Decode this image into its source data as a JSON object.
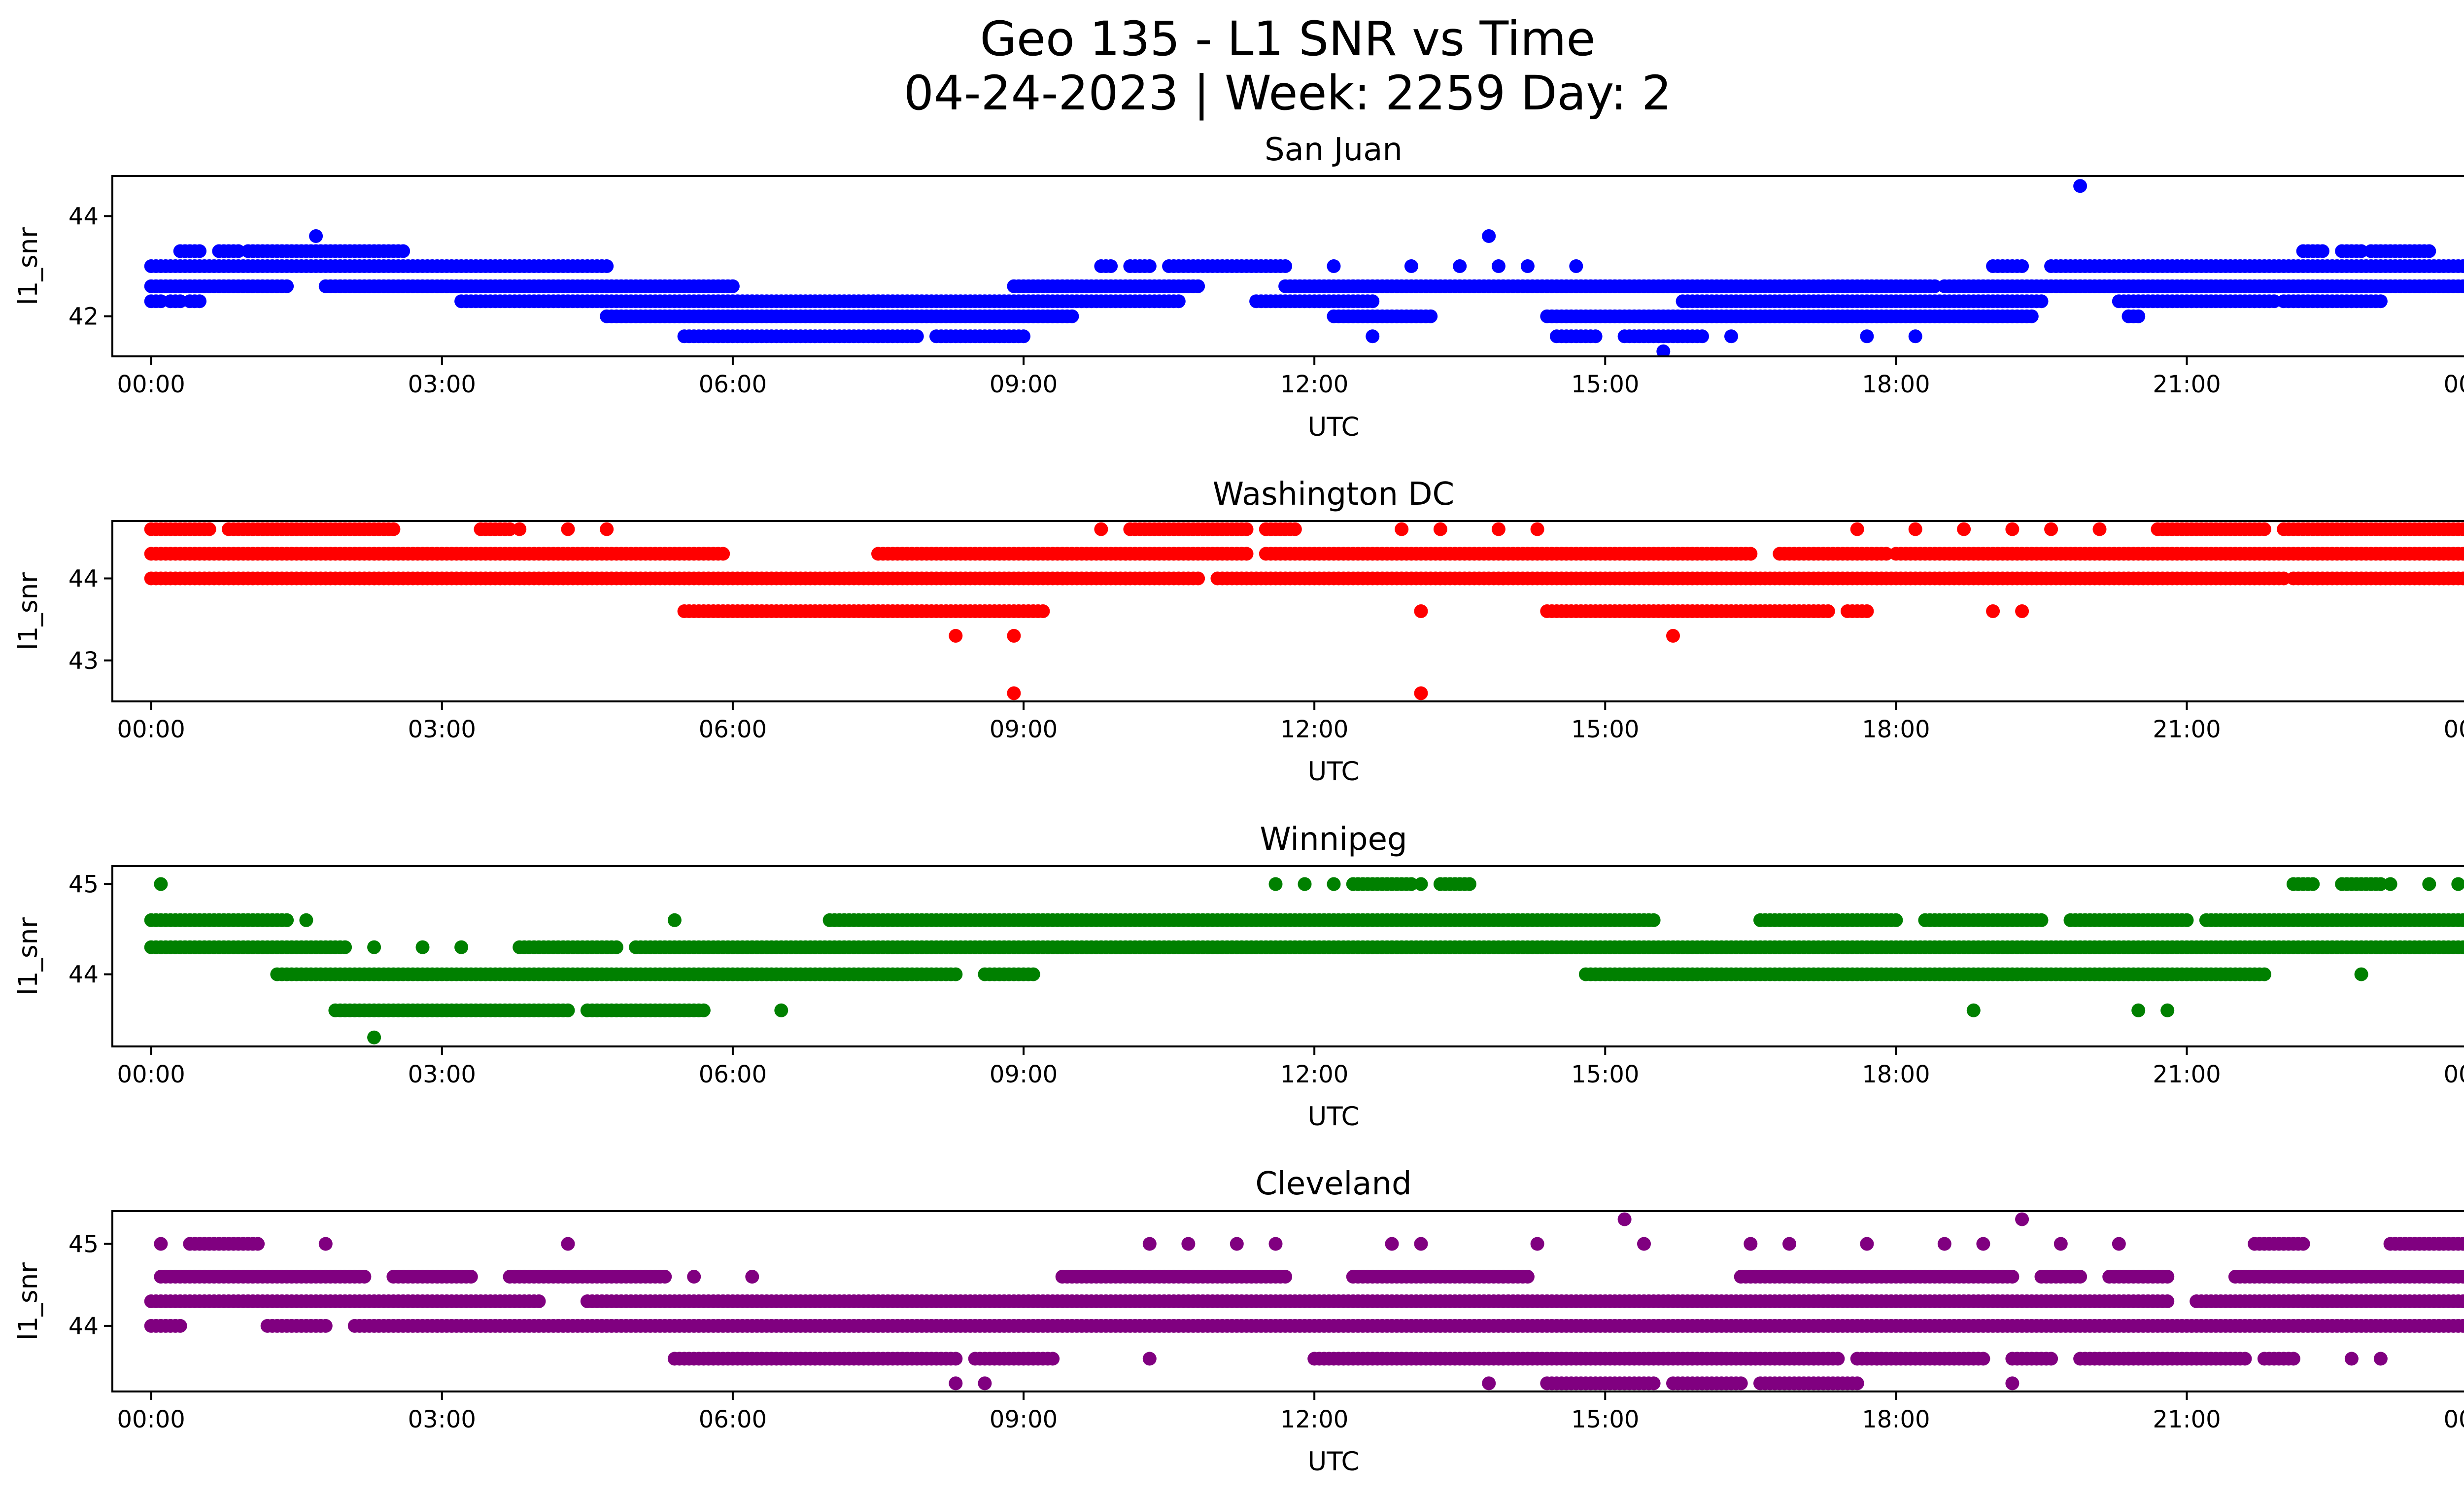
{
  "figure": {
    "title_line1": "Geo 135 - L1 SNR vs Time",
    "title_line2": "04-24-2023 | Week: 2259 Day: 2"
  },
  "chart_data": [
    {
      "type": "scatter",
      "title": "San Juan",
      "xlabel": "UTC",
      "ylabel": "l1_snr",
      "color": "#0000ff",
      "xlim": [
        -0.4,
        24.8
      ],
      "ylim": [
        41.2,
        44.8
      ],
      "xticks": [
        0,
        3,
        6,
        9,
        12,
        15,
        18,
        21,
        24
      ],
      "xtick_labels": [
        "00:00",
        "03:00",
        "06:00",
        "09:00",
        "12:00",
        "15:00",
        "18:00",
        "21:00",
        "00:00"
      ],
      "yticks": [
        42,
        44
      ],
      "ytick_labels": [
        "42",
        "44"
      ],
      "bands": [
        {
          "y": 43.3,
          "ranges": [
            [
              0.3,
              0.5
            ],
            [
              0.7,
              0.9
            ],
            [
              1.0,
              2.6
            ],
            [
              22.2,
              22.4
            ],
            [
              22.6,
              22.8
            ],
            [
              22.9,
              23.5
            ]
          ]
        },
        {
          "y": 43.0,
          "ranges": [
            [
              0.0,
              4.7
            ],
            [
              9.8,
              9.9
            ],
            [
              10.1,
              10.3
            ],
            [
              10.5,
              11.7
            ],
            [
              19.0,
              19.3
            ],
            [
              19.6,
              24.0
            ]
          ]
        },
        {
          "y": 42.6,
          "ranges": [
            [
              0.0,
              1.4
            ],
            [
              1.8,
              6.0
            ],
            [
              8.9,
              10.8
            ],
            [
              11.7,
              18.4
            ],
            [
              18.5,
              24.0
            ]
          ]
        },
        {
          "y": 42.3,
          "ranges": [
            [
              0.0,
              0.1
            ],
            [
              0.2,
              0.3
            ],
            [
              0.4,
              0.5
            ],
            [
              3.2,
              10.6
            ],
            [
              11.4,
              12.6
            ],
            [
              15.8,
              19.5
            ],
            [
              20.3,
              21.9
            ],
            [
              22.0,
              23.0
            ]
          ]
        },
        {
          "y": 42.0,
          "ranges": [
            [
              4.7,
              9.5
            ],
            [
              12.2,
              13.2
            ],
            [
              14.4,
              19.4
            ],
            [
              20.4,
              20.5
            ]
          ]
        },
        {
          "y": 41.6,
          "ranges": [
            [
              5.5,
              7.9
            ],
            [
              8.1,
              9.0
            ],
            [
              14.5,
              14.9
            ],
            [
              15.2,
              16.0
            ]
          ]
        }
      ],
      "points": [
        [
          1.7,
          43.6
        ],
        [
          13.8,
          43.6
        ],
        [
          19.9,
          44.6
        ],
        [
          12.6,
          41.6
        ],
        [
          16.3,
          41.6
        ],
        [
          17.7,
          41.6
        ],
        [
          18.2,
          41.6
        ],
        [
          15.6,
          41.3
        ],
        [
          13.0,
          43.0
        ],
        [
          13.5,
          43.0
        ],
        [
          13.9,
          43.0
        ],
        [
          14.2,
          43.0
        ],
        [
          14.7,
          43.0
        ],
        [
          12.2,
          43.0
        ]
      ]
    },
    {
      "type": "scatter",
      "title": "Washington DC",
      "xlabel": "UTC",
      "ylabel": "l1_snr",
      "color": "#ff0000",
      "xlim": [
        -0.4,
        24.8
      ],
      "ylim": [
        42.5,
        44.7
      ],
      "xticks": [
        0,
        3,
        6,
        9,
        12,
        15,
        18,
        21,
        24
      ],
      "xtick_labels": [
        "00:00",
        "03:00",
        "06:00",
        "09:00",
        "12:00",
        "15:00",
        "18:00",
        "21:00",
        "00:00"
      ],
      "yticks": [
        43,
        44
      ],
      "ytick_labels": [
        "43",
        "44"
      ],
      "bands": [
        {
          "y": 44.6,
          "ranges": [
            [
              0.0,
              0.6
            ],
            [
              0.8,
              2.5
            ],
            [
              3.4,
              3.7
            ],
            [
              10.1,
              11.3
            ],
            [
              11.5,
              11.8
            ],
            [
              20.7,
              21.8
            ],
            [
              22.0,
              24.0
            ]
          ]
        },
        {
          "y": 44.3,
          "ranges": [
            [
              0.0,
              5.9
            ],
            [
              7.5,
              11.3
            ],
            [
              11.5,
              16.5
            ],
            [
              16.8,
              17.9
            ],
            [
              18.0,
              24.0
            ]
          ]
        },
        {
          "y": 44.0,
          "ranges": [
            [
              0.0,
              10.8
            ],
            [
              11.0,
              22.0
            ],
            [
              22.1,
              24.0
            ]
          ]
        },
        {
          "y": 43.6,
          "ranges": [
            [
              5.5,
              9.2
            ],
            [
              14.4,
              17.3
            ],
            [
              17.5,
              17.7
            ]
          ]
        }
      ],
      "points": [
        [
          3.8,
          44.6
        ],
        [
          4.3,
          44.6
        ],
        [
          4.7,
          44.6
        ],
        [
          9.8,
          44.6
        ],
        [
          12.9,
          44.6
        ],
        [
          13.3,
          44.6
        ],
        [
          13.9,
          44.6
        ],
        [
          14.3,
          44.6
        ],
        [
          17.6,
          44.6
        ],
        [
          18.2,
          44.6
        ],
        [
          18.7,
          44.6
        ],
        [
          19.2,
          44.6
        ],
        [
          19.6,
          44.6
        ],
        [
          20.1,
          44.6
        ],
        [
          13.1,
          43.6
        ],
        [
          19.0,
          43.6
        ],
        [
          19.3,
          43.6
        ],
        [
          8.3,
          43.3
        ],
        [
          8.9,
          43.3
        ],
        [
          15.7,
          43.3
        ],
        [
          8.9,
          42.6
        ],
        [
          13.1,
          42.6
        ]
      ]
    },
    {
      "type": "scatter",
      "title": "Winnipeg",
      "xlabel": "UTC",
      "ylabel": "l1_snr",
      "color": "#008000",
      "xlim": [
        -0.4,
        24.8
      ],
      "ylim": [
        43.2,
        45.2
      ],
      "xticks": [
        0,
        3,
        6,
        9,
        12,
        15,
        18,
        21,
        24
      ],
      "xtick_labels": [
        "00:00",
        "03:00",
        "06:00",
        "09:00",
        "12:00",
        "15:00",
        "18:00",
        "21:00",
        "00:00"
      ],
      "yticks": [
        44,
        45
      ],
      "ytick_labels": [
        "44",
        "45"
      ],
      "bands": [
        {
          "y": 45.0,
          "ranges": [
            [
              12.4,
              13.0
            ],
            [
              13.3,
              13.6
            ],
            [
              22.1,
              22.3
            ],
            [
              22.6,
              23.0
            ]
          ]
        },
        {
          "y": 44.6,
          "ranges": [
            [
              0.0,
              1.4
            ],
            [
              7.0,
              15.5
            ],
            [
              16.6,
              18.0
            ],
            [
              18.3,
              19.5
            ],
            [
              19.8,
              21.0
            ],
            [
              21.2,
              24.0
            ]
          ]
        },
        {
          "y": 44.3,
          "ranges": [
            [
              0.0,
              2.0
            ],
            [
              3.8,
              4.8
            ],
            [
              5.0,
              24.0
            ]
          ]
        },
        {
          "y": 44.0,
          "ranges": [
            [
              1.3,
              8.3
            ],
            [
              8.6,
              9.1
            ],
            [
              14.8,
              21.8
            ]
          ]
        },
        {
          "y": 43.6,
          "ranges": [
            [
              1.9,
              4.3
            ],
            [
              4.5,
              5.7
            ]
          ]
        }
      ],
      "points": [
        [
          0.1,
          45.0
        ],
        [
          11.6,
          45.0
        ],
        [
          11.9,
          45.0
        ],
        [
          12.2,
          45.0
        ],
        [
          13.1,
          45.0
        ],
        [
          23.1,
          45.0
        ],
        [
          23.5,
          45.0
        ],
        [
          23.8,
          45.0
        ],
        [
          1.6,
          44.6
        ],
        [
          5.4,
          44.6
        ],
        [
          2.3,
          44.3
        ],
        [
          2.8,
          44.3
        ],
        [
          3.2,
          44.3
        ],
        [
          22.8,
          44.0
        ],
        [
          6.5,
          43.6
        ],
        [
          18.8,
          43.6
        ],
        [
          20.5,
          43.6
        ],
        [
          20.8,
          43.6
        ],
        [
          2.3,
          43.3
        ]
      ]
    },
    {
      "type": "scatter",
      "title": "Cleveland",
      "xlabel": "UTC",
      "ylabel": "l1_snr",
      "color": "#800080",
      "xlim": [
        -0.4,
        24.8
      ],
      "ylim": [
        43.2,
        45.4
      ],
      "xticks": [
        0,
        3,
        6,
        9,
        12,
        15,
        18,
        21,
        24
      ],
      "xtick_labels": [
        "00:00",
        "03:00",
        "06:00",
        "09:00",
        "12:00",
        "15:00",
        "18:00",
        "21:00",
        "00:00"
      ],
      "yticks": [
        44,
        45
      ],
      "ytick_labels": [
        "44",
        "45"
      ],
      "bands": [
        {
          "y": 45.0,
          "ranges": [
            [
              0.4,
              1.1
            ],
            [
              21.7,
              22.2
            ],
            [
              23.1,
              24.0
            ]
          ]
        },
        {
          "y": 44.6,
          "ranges": [
            [
              0.1,
              2.2
            ],
            [
              2.5,
              3.3
            ],
            [
              3.7,
              5.3
            ],
            [
              9.4,
              11.7
            ],
            [
              12.4,
              14.2
            ],
            [
              16.4,
              19.2
            ],
            [
              19.5,
              19.9
            ],
            [
              20.2,
              20.8
            ],
            [
              21.5,
              24.0
            ]
          ]
        },
        {
          "y": 44.3,
          "ranges": [
            [
              0.0,
              4.0
            ],
            [
              4.5,
              20.8
            ],
            [
              21.1,
              24.0
            ]
          ]
        },
        {
          "y": 44.0,
          "ranges": [
            [
              0.0,
              0.3
            ],
            [
              1.2,
              1.8
            ],
            [
              2.1,
              24.0
            ]
          ]
        },
        {
          "y": 43.6,
          "ranges": [
            [
              5.4,
              8.3
            ],
            [
              8.5,
              9.3
            ],
            [
              12.0,
              17.4
            ],
            [
              17.6,
              18.9
            ],
            [
              19.2,
              19.6
            ],
            [
              19.9,
              21.6
            ],
            [
              21.8,
              22.1
            ]
          ]
        },
        {
          "y": 43.3,
          "ranges": [
            [
              14.4,
              15.5
            ],
            [
              15.7,
              16.4
            ],
            [
              16.6,
              17.6
            ]
          ]
        }
      ],
      "points": [
        [
          0.1,
          45.0
        ],
        [
          1.8,
          45.0
        ],
        [
          4.3,
          45.0
        ],
        [
          10.3,
          45.0
        ],
        [
          10.7,
          45.0
        ],
        [
          11.2,
          45.0
        ],
        [
          11.6,
          45.0
        ],
        [
          12.8,
          45.0
        ],
        [
          13.1,
          45.0
        ],
        [
          14.3,
          45.0
        ],
        [
          15.4,
          45.0
        ],
        [
          16.5,
          45.0
        ],
        [
          16.9,
          45.0
        ],
        [
          17.7,
          45.0
        ],
        [
          18.5,
          45.0
        ],
        [
          18.9,
          45.0
        ],
        [
          19.7,
          45.0
        ],
        [
          20.3,
          45.0
        ],
        [
          15.2,
          45.3
        ],
        [
          19.3,
          45.3
        ],
        [
          5.6,
          44.6
        ],
        [
          6.2,
          44.6
        ],
        [
          10.3,
          43.6
        ],
        [
          22.7,
          43.6
        ],
        [
          23.0,
          43.6
        ],
        [
          8.3,
          43.3
        ],
        [
          8.6,
          43.3
        ],
        [
          13.8,
          43.3
        ],
        [
          19.2,
          43.3
        ]
      ]
    }
  ]
}
